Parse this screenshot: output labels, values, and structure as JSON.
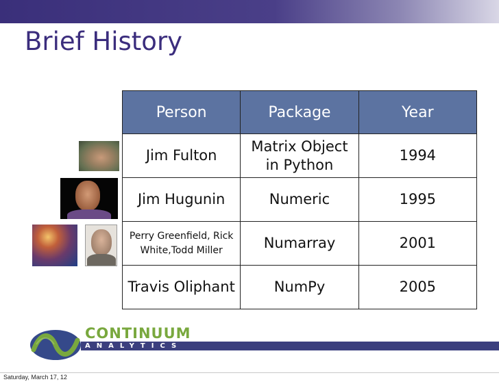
{
  "slide": {
    "title": "Brief History"
  },
  "table": {
    "headers": [
      "Person",
      "Package",
      "Year"
    ],
    "rows": [
      {
        "person": "Jim Fulton",
        "package": "Matrix Object in Python",
        "year": "1994"
      },
      {
        "person": "Jim Hugunin",
        "package": "Numeric",
        "year": "1995"
      },
      {
        "person": "Perry Greenfield, Rick White,Todd Miller",
        "package": "Numarray",
        "year": "2001"
      },
      {
        "person": "Travis Oliphant",
        "package": "NumPy",
        "year": "2005"
      }
    ]
  },
  "logo": {
    "name": "CONTINUUM",
    "sub": "ANALYTICS"
  },
  "footer": {
    "date": "Saturday, March 17, 12"
  },
  "colors": {
    "title": "#3b2d7d",
    "header_bg": "#5c73a1",
    "band": "#3b3f7e",
    "logo_green": "#79a83e"
  }
}
